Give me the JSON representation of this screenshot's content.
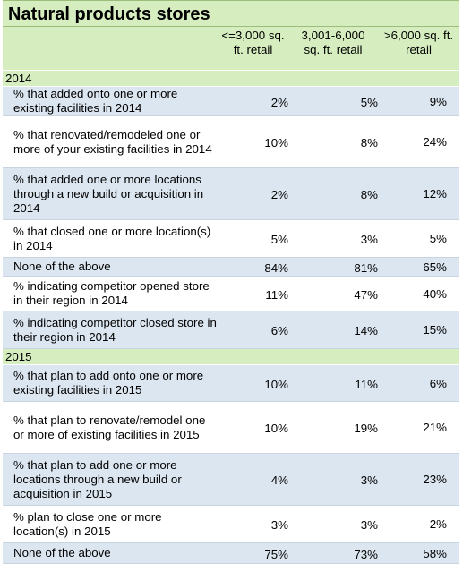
{
  "title": "Natural products stores",
  "columns": [
    "<=3,000 sq. ft. retail",
    "3,001-6,000 sq. ft. retail",
    ">6,000 sq. ft. retail"
  ],
  "column_lines": [
    [
      "<=3,000 sq.",
      "ft. retail"
    ],
    [
      "3,001-6,000",
      "sq. ft. retail"
    ],
    [
      ">6,000 sq. ft.",
      "retail"
    ]
  ],
  "sections": [
    {
      "label": "2014",
      "rows": [
        {
          "label": "% that added onto one or more existing facilities in 2014",
          "values": [
            "2%",
            "5%",
            "9%"
          ]
        },
        {
          "label": "% that renovated/remodeled one or more of your existing facilities in 2014",
          "values": [
            "10%",
            "8%",
            "24%"
          ]
        },
        {
          "label": "% that added one or more locations through a new build or acquisition in 2014",
          "values": [
            "2%",
            "8%",
            "12%"
          ]
        },
        {
          "label": "% that closed one or more location(s) in 2014",
          "values": [
            "5%",
            "3%",
            "5%"
          ]
        },
        {
          "label": "None of the above",
          "values": [
            "84%",
            "81%",
            "65%"
          ]
        },
        {
          "label": "% indicating competitor opened store in their region in 2014",
          "values": [
            "11%",
            "47%",
            "40%"
          ]
        },
        {
          "label": "% indicating competitor closed store in their region in 2014",
          "values": [
            "6%",
            "14%",
            "15%"
          ]
        }
      ]
    },
    {
      "label": "2015",
      "rows": [
        {
          "label": "% that plan to add onto one or more existing facilities in 2015",
          "values": [
            "10%",
            "11%",
            "6%"
          ]
        },
        {
          "label": "% that plan to renovate/remodel one or more of existing facilities in 2015",
          "values": [
            "10%",
            "19%",
            "21%"
          ]
        },
        {
          "label": "% that plan to add one or more locations through a new build or acquisition in 2015",
          "values": [
            "4%",
            "3%",
            "23%"
          ]
        },
        {
          "label": "% plan to close one or more location(s) in 2015",
          "values": [
            "3%",
            "3%",
            "2%"
          ]
        },
        {
          "label": "None of the above",
          "values": [
            "75%",
            "73%",
            "58%"
          ]
        }
      ]
    }
  ],
  "colors": {
    "header_green": "#d5edbf",
    "row_blue": "#dce6f1",
    "row_white": "#ffffff"
  }
}
